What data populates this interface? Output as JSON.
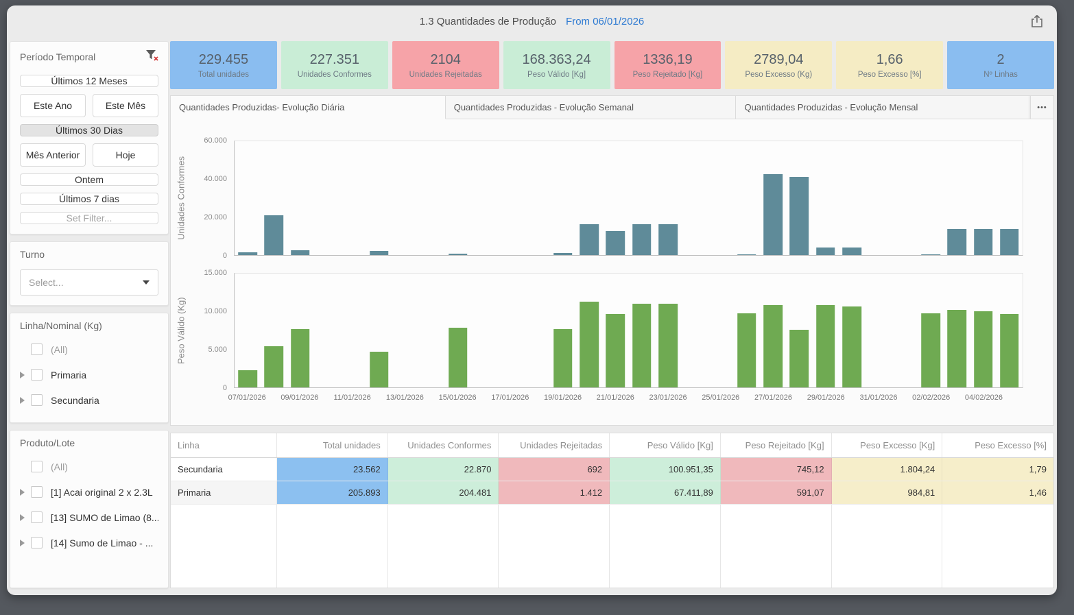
{
  "window": {
    "title": "1.3 Quantidades de Produção",
    "from_label": "From 06/01/2026"
  },
  "sidebar": {
    "periodo": {
      "title": "Período Temporal",
      "buttons": [
        "Últimos 12 Meses",
        "Este Ano",
        "Este Mês",
        "Últimos 30 Dias",
        "Mês Anterior",
        "Hoje",
        "Ontem",
        "Últimos 7 dias",
        "Set Filter..."
      ],
      "selected": "Últimos 30 Dias"
    },
    "turno": {
      "title": "Turno",
      "placeholder": "Select..."
    },
    "linha": {
      "title": "Linha/Nominal (Kg)",
      "items": [
        "(All)",
        "Primaria",
        "Secundaria"
      ]
    },
    "produto": {
      "title": "Produto/Lote",
      "items": [
        "(All)",
        "[1] Acai original 2 x 2.3L",
        "[13] SUMO de Limao (8...",
        "[14] Sumo de Limao - ..."
      ]
    }
  },
  "kpis": [
    {
      "value": "229.455",
      "label": "Total unidades",
      "bg": "#8abdf0"
    },
    {
      "value": "227.351",
      "label": "Unidades Conformes",
      "bg": "#c9edd6"
    },
    {
      "value": "2104",
      "label": "Unidades Rejeitadas",
      "bg": "#f6a3a8"
    },
    {
      "value": "168.363,24",
      "label": "Peso Válido [Kg]",
      "bg": "#c9edd6"
    },
    {
      "value": "1336,19",
      "label": "Peso Rejeitado [Kg]",
      "bg": "#f6a3a8"
    },
    {
      "value": "2789,04",
      "label": "Peso Excesso (Kg)",
      "bg": "#f5ecc4"
    },
    {
      "value": "1,66",
      "label": "Peso Excesso [%]",
      "bg": "#f5ecc4"
    },
    {
      "value": "2",
      "label": "Nº Linhas",
      "bg": "#8abdf0"
    }
  ],
  "tabs": {
    "items": [
      "Quantidades Produzidas- Evolução Diária",
      "Quantidades Produzidas - Evolução Semanal",
      "Quantidades Produzidas - Evolução Mensal"
    ],
    "active_index": 0,
    "more_label": "•••"
  },
  "chart_data": [
    {
      "type": "bar",
      "title": "Quantidades Produzidas- Evolução Diária",
      "ylabel": "Unidades Conformes",
      "xlabel": "",
      "ylim": [
        0,
        60000
      ],
      "ytick_labels": [
        "0",
        "20.000",
        "40.000",
        "60.000"
      ],
      "bar_color": "#5f8b99",
      "grid": false,
      "legend": false,
      "x_label_every": 2,
      "categories": [
        "07/01/2026",
        "08/01/2026",
        "09/01/2026",
        "10/01/2026",
        "11/01/2026",
        "12/01/2026",
        "13/01/2026",
        "14/01/2026",
        "15/01/2026",
        "16/01/2026",
        "17/01/2026",
        "18/01/2026",
        "19/01/2026",
        "20/01/2026",
        "21/01/2026",
        "22/01/2026",
        "23/01/2026",
        "24/01/2026",
        "25/01/2026",
        "26/01/2026",
        "27/01/2026",
        "28/01/2026",
        "29/01/2026",
        "30/01/2026",
        "31/01/2026",
        "01/02/2026",
        "02/02/2026",
        "03/02/2026",
        "04/02/2026",
        "05/02/2026"
      ],
      "values": [
        1500,
        21000,
        2500,
        0,
        0,
        2000,
        0,
        0,
        900,
        0,
        0,
        0,
        1000,
        16400,
        12500,
        16200,
        16100,
        0,
        0,
        500,
        42600,
        41200,
        3900,
        3900,
        0,
        0,
        500,
        13900,
        13900,
        13900
      ]
    },
    {
      "type": "bar",
      "title": "Quantidades Produzidas- Evolução Diária",
      "ylabel": "Peso Válido (Kg)",
      "xlabel": "",
      "ylim": [
        0,
        15000
      ],
      "ytick_labels": [
        "0",
        "5.000",
        "10.000",
        "15.000"
      ],
      "bar_color": "#6faa52",
      "grid": false,
      "legend": false,
      "x_label_every": 2,
      "categories": [
        "07/01/2026",
        "08/01/2026",
        "09/01/2026",
        "10/01/2026",
        "11/01/2026",
        "12/01/2026",
        "13/01/2026",
        "14/01/2026",
        "15/01/2026",
        "16/01/2026",
        "17/01/2026",
        "18/01/2026",
        "19/01/2026",
        "20/01/2026",
        "21/01/2026",
        "22/01/2026",
        "23/01/2026",
        "24/01/2026",
        "25/01/2026",
        "26/01/2026",
        "27/01/2026",
        "28/01/2026",
        "29/01/2026",
        "30/01/2026",
        "31/01/2026",
        "01/02/2026",
        "02/02/2026",
        "03/02/2026",
        "04/02/2026",
        "05/02/2026"
      ],
      "values": [
        2300,
        5400,
        7700,
        0,
        0,
        4700,
        0,
        0,
        7900,
        0,
        0,
        0,
        7700,
        11300,
        9700,
        11000,
        11000,
        0,
        0,
        9800,
        10800,
        7600,
        10800,
        10700,
        0,
        0,
        9800,
        10200,
        10000,
        9700
      ]
    }
  ],
  "table": {
    "columns": [
      "Linha",
      "Total unidades",
      "Unidades Conformes",
      "Unidades Rejeitadas",
      "Peso Válido [Kg]",
      "Peso Rejeitado [Kg]",
      "Peso Excesso [Kg]",
      "Peso Excesso [%]"
    ],
    "rows": [
      [
        "Secundaria",
        "23.562",
        "22.870",
        "692",
        "100.951,35",
        "745,12",
        "1.804,24",
        "1,79"
      ],
      [
        "Primaria",
        "205.893",
        "204.481",
        "1.412",
        "67.411,89",
        "591,07",
        "984,81",
        "1,46"
      ]
    ],
    "cell_colors": {
      "total": "#8cc0f0",
      "conformes": "#cdeeda",
      "rejeitadas": "#f0b9bc",
      "peso_valido": "#cdeeda",
      "peso_rejeitado": "#f0b9bc",
      "peso_excesso": "#f6eeca",
      "peso_excesso_pct": "#f6eeca"
    }
  }
}
